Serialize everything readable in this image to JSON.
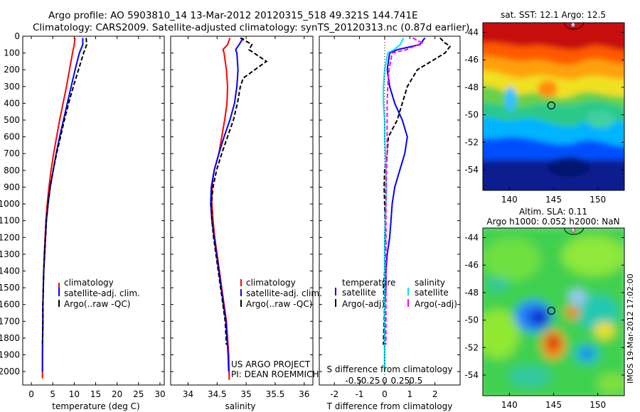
{
  "header": {
    "line1": "Argo profile: AO 5903810_14 13-Mar-2012 20120315_518 49.321S 144.741E",
    "line2": "Climatology: CARS2009. Satellite-adjusted climatology: synTS_20120313.nc (0.87d earlier)"
  },
  "colors": {
    "climatology": "#ff0000",
    "satellite": "#0000ff",
    "argo": "#000000",
    "satellite_s": "#00e5ee",
    "argo_s": "#ff00ff"
  },
  "chart_data": [
    {
      "type": "line",
      "id": "temperature",
      "xlabel": "temperature (deg C)",
      "xlim": [
        -2,
        31
      ],
      "ylim": [
        0,
        2080
      ],
      "y_reversed": true,
      "xticks": [
        0,
        5,
        10,
        15,
        20,
        25,
        30
      ],
      "yticks": [
        0,
        100,
        200,
        300,
        400,
        500,
        600,
        700,
        800,
        900,
        1000,
        1100,
        1200,
        1300,
        1400,
        1500,
        1600,
        1700,
        1800,
        1900,
        2000
      ],
      "legend": {
        "position": "bottom-right",
        "entries": [
          "climatology",
          "satellite-adj. clim.",
          "Argo(..raw -QC)"
        ]
      },
      "series": [
        {
          "name": "climatology",
          "color": "#ff0000",
          "dash": "",
          "x": [
            10.2,
            10,
            9.6,
            8.9,
            8.2,
            7.4,
            6.6,
            5.9,
            5.2,
            4.6,
            4.1,
            3.7,
            3.4,
            3.2,
            3.0,
            2.9,
            2.8,
            2.7,
            2.7,
            2.6,
            2.6
          ],
          "y": [
            10,
            50,
            100,
            200,
            300,
            400,
            500,
            600,
            700,
            800,
            900,
            1000,
            1100,
            1200,
            1300,
            1400,
            1500,
            1600,
            1700,
            1900,
            2040
          ]
        },
        {
          "name": "satellite-adj. clim.",
          "color": "#0000ff",
          "dash": "",
          "x": [
            12,
            12,
            11.2,
            10.2,
            9.3,
            8.4,
            7.5,
            6.6,
            5.8,
            5.1,
            4.4,
            3.9,
            3.5,
            3.3,
            3.1,
            2.9,
            2.8,
            2.7,
            2.7,
            2.6,
            2.6
          ],
          "y": [
            10,
            50,
            100,
            200,
            300,
            400,
            500,
            600,
            700,
            800,
            900,
            1000,
            1100,
            1200,
            1300,
            1400,
            1500,
            1600,
            1700,
            1900,
            2000
          ]
        },
        {
          "name": "Argo(..raw -QC)",
          "color": "#000000",
          "dash": "6,3",
          "x": [
            12.8,
            12.9,
            12.2,
            11.0,
            9.8,
            8.7,
            7.7,
            6.8,
            5.9,
            5.1,
            4.4,
            3.9,
            3.5,
            3.3,
            3.1,
            2.9,
            2.8,
            2.7,
            2.7,
            2.6
          ],
          "y": [
            10,
            50,
            100,
            200,
            300,
            400,
            500,
            600,
            700,
            800,
            900,
            1000,
            1100,
            1200,
            1300,
            1400,
            1500,
            1600,
            1700,
            1840
          ]
        }
      ]
    },
    {
      "type": "line",
      "id": "salinity",
      "xlabel": "salinity",
      "xlim": [
        33.7,
        36.15
      ],
      "ylim": [
        0,
        2080
      ],
      "y_reversed": true,
      "xticks": [
        34,
        34.5,
        35,
        35.5,
        36
      ],
      "xticklabels": [
        "34",
        "34.5",
        "35",
        "35.5",
        "36"
      ],
      "legend": {
        "position": "bottom-right",
        "entries": [
          "climatology",
          "satellite-adj. clim.",
          "Argo(..raw -QC)"
        ]
      },
      "footnote": [
        "US ARGO PROJECT",
        "PI: DEAN ROEMMICH"
      ],
      "series": [
        {
          "name": "climatology",
          "color": "#ff0000",
          "dash": "",
          "x": [
            34.72,
            34.68,
            34.6,
            34.62,
            34.66,
            34.68,
            34.67,
            34.63,
            34.58,
            34.53,
            34.45,
            34.41,
            34.41,
            34.43,
            34.46,
            34.5,
            34.54,
            34.58,
            34.62,
            34.66,
            34.7,
            34.71
          ],
          "y": [
            10,
            50,
            80,
            100,
            200,
            300,
            400,
            500,
            600,
            700,
            800,
            900,
            1000,
            1100,
            1200,
            1300,
            1400,
            1500,
            1600,
            1700,
            1900,
            2050
          ]
        },
        {
          "name": "satellite-adj. clim.",
          "color": "#0000ff",
          "dash": "",
          "x": [
            34.95,
            34.88,
            34.82,
            34.84,
            34.86,
            34.84,
            34.8,
            34.72,
            34.62,
            34.53,
            34.45,
            34.4,
            34.39,
            34.41,
            34.45,
            34.49,
            34.53,
            34.57,
            34.61,
            34.65,
            34.69,
            34.7
          ],
          "y": [
            10,
            50,
            80,
            100,
            200,
            300,
            400,
            500,
            600,
            700,
            800,
            900,
            1000,
            1100,
            1200,
            1300,
            1400,
            1500,
            1600,
            1700,
            1900,
            2000
          ]
        },
        {
          "name": "Argo(..raw -QC)",
          "color": "#000000",
          "dash": "6,3",
          "x": [
            34.9,
            35.1,
            35.05,
            35.35,
            34.95,
            34.9,
            34.85,
            34.78,
            34.68,
            34.58,
            34.49,
            34.43,
            34.4,
            34.41,
            34.44,
            34.48,
            34.52,
            34.56,
            34.6,
            34.64,
            34.66
          ],
          "y": [
            10,
            50,
            80,
            150,
            250,
            300,
            400,
            500,
            600,
            700,
            800,
            900,
            1000,
            1100,
            1200,
            1300,
            1400,
            1500,
            1600,
            1700,
            1840
          ]
        }
      ]
    },
    {
      "type": "line",
      "id": "difference",
      "xlabel": "T difference from climatology",
      "xlabel2": "S difference from climatology",
      "xlim": [
        -2.6,
        3.0
      ],
      "ylim": [
        0,
        2080
      ],
      "y_reversed": true,
      "xticks": [
        -2,
        -1,
        0,
        1,
        2
      ],
      "xticks2_values": [
        -0.5,
        -0.25,
        0,
        0.25,
        0.5
      ],
      "xticks2_labels": [
        "-0.5",
        "-0.25",
        "0",
        "0.25",
        "0.5"
      ],
      "legend_titles": [
        "temperature",
        "salinity"
      ],
      "legend": {
        "position": "bottom",
        "entries": [
          "satellite",
          "Argo(-adj)",
          "satellite",
          "Argo(-adj)"
        ]
      },
      "series": [
        {
          "name": "satellite",
          "group": "temperature",
          "color": "#0000ff",
          "dash": "",
          "x": [
            1.6,
            1.4,
            0.5,
            0.2,
            0.1,
            0.2,
            0.4,
            0.7,
            0.9,
            0.8,
            0.6,
            0.4,
            0.3,
            0.25,
            0.2,
            0.1,
            0.05,
            0.05,
            0.0,
            0.0,
            0.0
          ],
          "y": [
            10,
            50,
            80,
            100,
            200,
            300,
            400,
            500,
            600,
            700,
            800,
            900,
            1000,
            1100,
            1200,
            1300,
            1400,
            1500,
            1600,
            1700,
            2000
          ]
        },
        {
          "name": "Argo(-adj)",
          "group": "temperature",
          "color": "#000000",
          "dash": "6,3",
          "x": [
            2.2,
            2.4,
            2.6,
            2.4,
            1.3,
            0.9,
            0.7,
            0.5,
            0.15,
            0.1,
            0.0,
            -0.02,
            0.0,
            0.02,
            0.03,
            0.0,
            0.0,
            -0.05,
            0.0,
            -0.05
          ],
          "y": [
            10,
            40,
            60,
            100,
            200,
            300,
            400,
            500,
            600,
            700,
            800,
            900,
            1000,
            1100,
            1200,
            1300,
            1400,
            1500,
            1600,
            1840
          ]
        },
        {
          "name": "satellite",
          "group": "salinity",
          "color": "#00e5ee",
          "dash": "",
          "x": [
            0.3,
            0.25,
            0.15,
            0.05,
            0.0,
            -0.02,
            -0.02,
            0.0,
            0.0,
            0.01,
            0.02,
            0.03,
            0.02,
            0.01,
            0.0,
            0.0,
            0.0,
            0.0,
            0.0,
            0.0
          ],
          "y": [
            10,
            50,
            80,
            100,
            200,
            300,
            400,
            500,
            600,
            700,
            800,
            900,
            1000,
            1100,
            1200,
            1300,
            1400,
            1500,
            1700,
            2000
          ]
        },
        {
          "name": "Argo(-adj)",
          "group": "salinity",
          "color": "#ff00ff",
          "dash": "6,3",
          "x": [
            0.45,
            0.6,
            0.35,
            0.12,
            0.07,
            0.05,
            0.04,
            0.04,
            0.04,
            0.04,
            0.03,
            0.02,
            0.02,
            0.02,
            0.02,
            0.02,
            0.02,
            0.02
          ],
          "y": [
            10,
            40,
            80,
            100,
            200,
            300,
            400,
            500,
            600,
            700,
            800,
            900,
            1000,
            1100,
            1200,
            1300,
            1500,
            1840
          ]
        }
      ]
    },
    {
      "type": "heatmap",
      "id": "sst_map",
      "title": "sat. SST: 12.1  Argo: 12.5",
      "xlim": [
        137,
        153
      ],
      "ylim": [
        -55.5,
        -43.3
      ],
      "xticks": [
        140,
        145,
        150
      ],
      "yticks": [
        -44,
        -46,
        -48,
        -50,
        -52,
        -54
      ],
      "marker": {
        "lon": 144.741,
        "lat": -49.321
      }
    },
    {
      "type": "heatmap",
      "id": "sla_map",
      "title": "Altim. SLA: 0.11",
      "subtitle": "Argo h1000: 0.052 h2000: NaN",
      "xlim": [
        137,
        153
      ],
      "ylim": [
        -55.5,
        -43.3
      ],
      "xticks": [
        140,
        145,
        150
      ],
      "yticks": [
        -44,
        -46,
        -48,
        -50,
        -52,
        -54
      ],
      "marker": {
        "lon": 144.741,
        "lat": -49.321
      }
    }
  ],
  "watermark": "IMOS 19-Mar-2012 17:02:00"
}
